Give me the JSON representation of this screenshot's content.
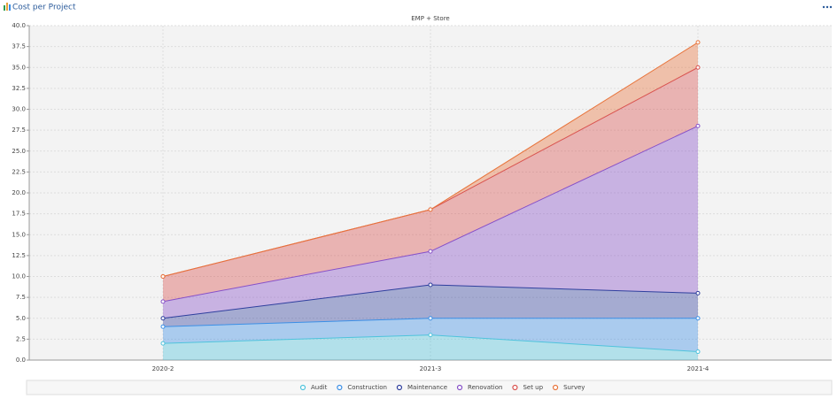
{
  "header": {
    "title": "Cost per Project"
  },
  "chart_data": {
    "type": "stacked_area",
    "title": "EMP + Store",
    "categories": [
      "2020-2",
      "2021-3",
      "2021-4"
    ],
    "series": [
      {
        "name": "Audit",
        "color": "#4fc3dc",
        "values": [
          2,
          3,
          1
        ]
      },
      {
        "name": "Construction",
        "color": "#3b8fe6",
        "values": [
          2,
          2,
          4
        ]
      },
      {
        "name": "Maintenance",
        "color": "#2f3f9e",
        "values": [
          1,
          4,
          3
        ]
      },
      {
        "name": "Renovation",
        "color": "#8650c8",
        "values": [
          2,
          4,
          20
        ]
      },
      {
        "name": "Set up",
        "color": "#d9534f",
        "values": [
          3,
          5,
          7
        ]
      },
      {
        "name": "Survey",
        "color": "#e8743b",
        "values": [
          0,
          0,
          3
        ]
      }
    ],
    "ylim": [
      0,
      40
    ],
    "yticks": [
      {
        "value": 0,
        "label": "0.0"
      },
      {
        "value": 2.5,
        "label": "2.5"
      },
      {
        "value": 5,
        "label": "5.0"
      },
      {
        "value": 7.5,
        "label": "7.5"
      },
      {
        "value": 10,
        "label": "10.0"
      },
      {
        "value": 12.5,
        "label": "12.5"
      },
      {
        "value": 15,
        "label": "15.0"
      },
      {
        "value": 17.5,
        "label": "17.5"
      },
      {
        "value": 20,
        "label": "20.0"
      },
      {
        "value": 22.5,
        "label": "22.5"
      },
      {
        "value": 25,
        "label": "25.0"
      },
      {
        "value": 27.5,
        "label": "27.5"
      },
      {
        "value": 30,
        "label": "30.0"
      },
      {
        "value": 32.5,
        "label": "32.5"
      },
      {
        "value": 35,
        "label": "35.0"
      },
      {
        "value": 37.5,
        "label": "37.5"
      },
      {
        "value": 40,
        "label": "40.0"
      }
    ],
    "grid": true,
    "legend": "bottom"
  }
}
